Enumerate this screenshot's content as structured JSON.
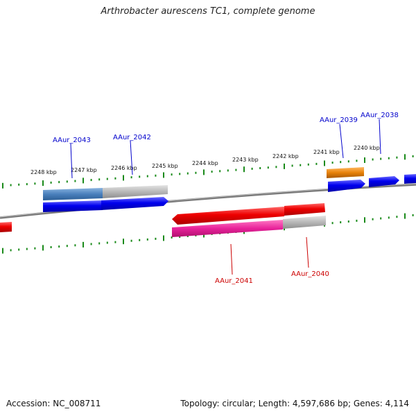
{
  "title": "Arthrobacter aurescens TC1, complete genome",
  "footer": {
    "accession": "Accession: NC_008711",
    "summary": "Topology: circular; Length: 4,597,686 bp; Genes: 4,114"
  },
  "colors": {
    "backbone": "#8a8a8a",
    "ticks": "#1a8a1a",
    "forward_gene": "#0000ee",
    "reverse_gene": "#ee0000",
    "forward_label": "#0000cc",
    "reverse_label": "#cc0000",
    "forward_feature": "#4a86c8",
    "reverse_feature": "#e8229a",
    "orange_feature": "#e8820a",
    "unaligned": "#b8b8b8"
  },
  "scale": {
    "labels": [
      "2248 kbp",
      "2247 kbp",
      "2246 kbp",
      "2245 kbp",
      "2244 kbp",
      "2243 kbp",
      "2242 kbp",
      "2241 kbp",
      "2240 kbp"
    ]
  },
  "genes": {
    "forward": [
      "AAur_2043",
      "AAur_2042",
      "AAur_2039",
      "AAur_2038"
    ],
    "reverse": [
      "AAur_2041",
      "AAur_2040"
    ]
  }
}
